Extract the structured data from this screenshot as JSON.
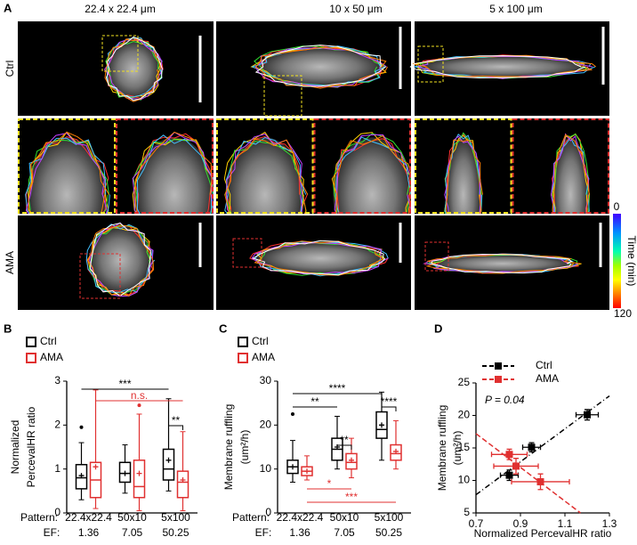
{
  "panel_a": {
    "label": "A",
    "columns": [
      "22.4 x 22.4 μm",
      "10 x 50 μm",
      "5 x 100 μm"
    ],
    "rows": [
      "Ctrl",
      "AMA"
    ],
    "colorbar": {
      "min": 0,
      "max": 120,
      "label": "Time (min)"
    }
  },
  "chart_data": [
    {
      "type": "box",
      "panel": "B",
      "y_label": [
        "Normalized",
        "PercevalHR ratio"
      ],
      "category_label": "Pattern:",
      "categories": [
        "22.4x22.4",
        "50x10",
        "5x100"
      ],
      "ef_label": "EF:",
      "ef": [
        1.36,
        7.05,
        50.25
      ],
      "ylim": [
        0,
        3
      ],
      "yticks": [
        0,
        1,
        2,
        3
      ],
      "series": [
        {
          "name": "Ctrl",
          "color": "#000000",
          "boxes": [
            {
              "low": 0.3,
              "q1": 0.55,
              "median": 0.8,
              "q3": 1.1,
              "high": 1.6,
              "mean": 0.85,
              "outliers": [
                1.95
              ]
            },
            {
              "low": 0.45,
              "q1": 0.7,
              "median": 0.9,
              "q3": 1.15,
              "high": 1.55,
              "mean": 0.9,
              "outliers": []
            },
            {
              "low": 0.5,
              "q1": 0.75,
              "median": 1.0,
              "q3": 1.45,
              "high": 2.6,
              "mean": 1.2,
              "outliers": []
            }
          ]
        },
        {
          "name": "AMA",
          "color": "#e03030",
          "boxes": [
            {
              "low": 0.1,
              "q1": 0.35,
              "median": 0.75,
              "q3": 1.15,
              "high": 2.8,
              "mean": 1.05,
              "outliers": []
            },
            {
              "low": 0.05,
              "q1": 0.35,
              "median": 0.6,
              "q3": 1.2,
              "high": 2.25,
              "mean": 0.9,
              "outliers": [
                2.45
              ]
            },
            {
              "low": 0.05,
              "q1": 0.35,
              "median": 0.7,
              "q3": 0.95,
              "high": 1.85,
              "mean": 0.75,
              "outliers": []
            }
          ]
        }
      ],
      "annotations": [
        {
          "text": "***",
          "series": 0,
          "from": 0,
          "to": 2
        },
        {
          "text": "n.s.",
          "series": 1,
          "from": 0,
          "to": 2
        },
        {
          "text": "**",
          "category": 2
        }
      ]
    },
    {
      "type": "box",
      "panel": "C",
      "y_label": [
        "Membrane ruffling",
        "(um²/h)"
      ],
      "category_label": "Pattern:",
      "categories": [
        "22.4x22.4",
        "50x10",
        "5x100"
      ],
      "ef_label": "EF:",
      "ef": [
        1.36,
        7.05,
        50.25
      ],
      "ylim": [
        0,
        30
      ],
      "yticks": [
        0,
        10,
        20,
        30
      ],
      "series": [
        {
          "name": "Ctrl",
          "color": "#000000",
          "boxes": [
            {
              "low": 7,
              "q1": 9,
              "median": 10.5,
              "q3": 12,
              "high": 16.5,
              "mean": 10.5,
              "outliers": [
                22.5
              ]
            },
            {
              "low": 10,
              "q1": 12,
              "median": 14.5,
              "q3": 17,
              "high": 22,
              "mean": 15,
              "outliers": []
            },
            {
              "low": 12,
              "q1": 17,
              "median": 19,
              "q3": 23,
              "high": 27.5,
              "mean": 20,
              "outliers": []
            }
          ]
        },
        {
          "name": "AMA",
          "color": "#e03030",
          "boxes": [
            {
              "low": 7.5,
              "q1": 8.5,
              "median": 9.5,
              "q3": 10.5,
              "high": 13,
              "mean": 9.5,
              "outliers": []
            },
            {
              "low": 8,
              "q1": 10,
              "median": 11.5,
              "q3": 13.5,
              "high": 17,
              "mean": 12,
              "outliers": []
            },
            {
              "low": 10,
              "q1": 12,
              "median": 13.5,
              "q3": 15.5,
              "high": 21,
              "mean": 14,
              "outliers": []
            }
          ]
        }
      ],
      "annotations": [
        {
          "text": "****",
          "series": 0,
          "from": 0,
          "to": 2
        },
        {
          "text": "**",
          "series": 0,
          "from": 0,
          "to": 1
        },
        {
          "text": "**",
          "category": 1
        },
        {
          "text": "****",
          "category": 2
        },
        {
          "text": "*",
          "series": 1,
          "from": 0,
          "to": 1
        },
        {
          "text": "***",
          "series": 1,
          "from": 0,
          "to": 2
        }
      ]
    },
    {
      "type": "scatter",
      "panel": "D",
      "y_label": [
        "Membrane ruffling",
        "(um²/h)"
      ],
      "x_label": "Normalized PercevalHR ratio",
      "annotation": "P = 0.04",
      "xlim": [
        0.7,
        1.3
      ],
      "xticks": [
        0.7,
        0.9,
        1.1,
        1.3
      ],
      "ylim": [
        5,
        25
      ],
      "yticks": [
        5,
        10,
        15,
        20,
        25
      ],
      "series": [
        {
          "name": "Ctrl",
          "color": "#000000",
          "x": [
            0.85,
            0.95,
            1.2
          ],
          "values": [
            10.8,
            15.1,
            20.1
          ],
          "xerr": [
            0.04,
            0.04,
            0.05
          ],
          "yerr": [
            0.8,
            0.7,
            0.8
          ],
          "fit_x": [
            0.7,
            1.3
          ],
          "fit_y": [
            7.8,
            23
          ]
        },
        {
          "name": "AMA",
          "color": "#e03030",
          "x": [
            0.85,
            0.88,
            0.99
          ],
          "values": [
            14,
            12.2,
            9.8
          ],
          "xerr": [
            0.08,
            0.1,
            0.13
          ],
          "yerr": [
            0.8,
            1.2,
            1.2
          ],
          "fit_x": [
            0.7,
            1.17
          ],
          "fit_y": [
            17.2,
            5
          ]
        }
      ]
    }
  ]
}
